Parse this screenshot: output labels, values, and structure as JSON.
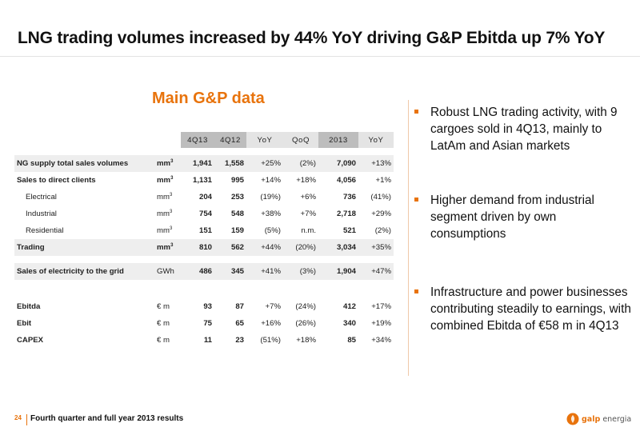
{
  "slide": {
    "title": "LNG trading volumes increased by 44% YoY driving G&P Ebitda up 7% YoY",
    "section_title": "Main G&P data"
  },
  "table": {
    "columns": [
      "4Q13",
      "4Q12",
      "YoY",
      "QoQ",
      "2013",
      "YoY"
    ],
    "rows": [
      {
        "label": "NG supply total sales volumes",
        "unit": "mm",
        "sup": "3",
        "values": [
          "1,941",
          "1,558",
          "+25%",
          "(2%)",
          "7,090",
          "+13%"
        ]
      },
      {
        "label": "Sales to direct clients",
        "unit": "mm",
        "sup": "3",
        "values": [
          "1,131",
          "995",
          "+14%",
          "+18%",
          "4,056",
          "+1%"
        ]
      },
      {
        "label": "Electrical",
        "unit": "mm",
        "sup": "3",
        "values": [
          "204",
          "253",
          "(19%)",
          "+6%",
          "736",
          "(41%)"
        ]
      },
      {
        "label": "Industrial",
        "unit": "mm",
        "sup": "3",
        "values": [
          "754",
          "548",
          "+38%",
          "+7%",
          "2,718",
          "+29%"
        ]
      },
      {
        "label": "Residential",
        "unit": "mm",
        "sup": "3",
        "values": [
          "151",
          "159",
          "(5%)",
          "n.m.",
          "521",
          "(2%)"
        ]
      },
      {
        "label": "Trading",
        "unit": "mm",
        "sup": "3",
        "values": [
          "810",
          "562",
          "+44%",
          "(20%)",
          "3,034",
          "+35%"
        ]
      },
      {
        "label": "Sales of electricity to the grid",
        "unit": "GWh",
        "sup": "",
        "values": [
          "486",
          "345",
          "+41%",
          "(3%)",
          "1,904",
          "+47%"
        ]
      },
      {
        "label": "Ebitda",
        "unit": "€ m",
        "sup": "",
        "values": [
          "93",
          "87",
          "+7%",
          "(24%)",
          "412",
          "+17%"
        ]
      },
      {
        "label": "Ebit",
        "unit": "€ m",
        "sup": "",
        "values": [
          "75",
          "65",
          "+16%",
          "(26%)",
          "340",
          "+19%"
        ]
      },
      {
        "label": "CAPEX",
        "unit": "€ m",
        "sup": "",
        "values": [
          "11",
          "23",
          "(51%)",
          "+18%",
          "85",
          "+34%"
        ]
      }
    ]
  },
  "bullets": [
    "Robust LNG trading activity, with 9 cargoes sold in 4Q13, mainly to LatAm and Asian markets",
    "Higher demand from industrial segment driven by own consumptions",
    "Infrastructure and power businesses contributing steadily to earnings, with combined Ebitda of €58 m in 4Q13"
  ],
  "footer": {
    "page_number": "24",
    "text": "Fourth quarter and full year 2013 results"
  },
  "logo": {
    "brand": "galp",
    "suffix": "energia"
  },
  "colors": {
    "accent": "#e8730c",
    "header_dark": "#bdbdbd",
    "header_light": "#e4e4e4",
    "row_shade": "#eeeeee"
  }
}
